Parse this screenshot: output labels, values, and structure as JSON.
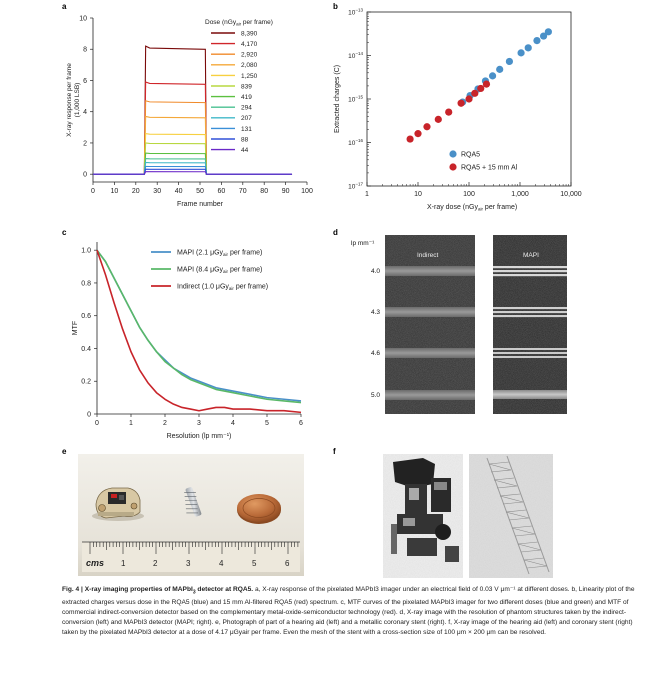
{
  "panel_labels": {
    "a": "a",
    "b": "b",
    "c": "c",
    "d": "d",
    "e": "e",
    "f": "f"
  },
  "chart_data": [
    {
      "panel": "a",
      "type": "line",
      "xlabel": "Frame number",
      "ylabel": [
        "X-ray response per frame",
        "(1,000 LSB)"
      ],
      "xlim": [
        0,
        100
      ],
      "ylim": [
        -0.5,
        10
      ],
      "xticks": [
        0,
        10,
        20,
        30,
        40,
        50,
        60,
        70,
        80,
        90,
        100
      ],
      "yticks": [
        0,
        2,
        4,
        6,
        8,
        10
      ],
      "legend_title": "Dose (nGy<sub>air</sub> per frame)",
      "legend_title_parts": [
        "Dose (nGy",
        "air",
        " per frame)"
      ],
      "legend_position": "right",
      "pulse": {
        "x_on": 24,
        "x_off": 53,
        "x_end": 93
      },
      "series": [
        {
          "name": "8,390",
          "value": 8.2,
          "color": "#7a0a0a"
        },
        {
          "name": "4,170",
          "value": 5.9,
          "color": "#d0262a"
        },
        {
          "name": "2,920",
          "value": 4.7,
          "color": "#f08a2a"
        },
        {
          "name": "2,080",
          "value": 3.7,
          "color": "#f4a83a"
        },
        {
          "name": "1,250",
          "value": 2.6,
          "color": "#f7d040"
        },
        {
          "name": "839",
          "value": 2.0,
          "color": "#b8d840"
        },
        {
          "name": "419",
          "value": 1.35,
          "color": "#5cc040"
        },
        {
          "name": "294",
          "value": 1.0,
          "color": "#48c090"
        },
        {
          "name": "207",
          "value": 0.75,
          "color": "#40b8c8"
        },
        {
          "name": "131",
          "value": 0.5,
          "color": "#3a8fd8"
        },
        {
          "name": "88",
          "value": 0.32,
          "color": "#3050d8"
        },
        {
          "name": "44",
          "value": 0.16,
          "color": "#6a28c8"
        }
      ]
    },
    {
      "panel": "b",
      "type": "scatter",
      "xlabel_parts": [
        "X-ray dose (nGy",
        "air",
        " per frame)"
      ],
      "ylabel": "Extracted charges (C)",
      "xscale": "log",
      "yscale": "log",
      "xlim": [
        1,
        10000
      ],
      "ylim": [
        1e-17,
        1e-13
      ],
      "xticks": [
        {
          "v": 1,
          "t": "1"
        },
        {
          "v": 10,
          "t": "10"
        },
        {
          "v": 100,
          "t": "100"
        },
        {
          "v": 1000,
          "t": "1,000"
        },
        {
          "v": 10000,
          "t": "10,000"
        }
      ],
      "yticks": [
        {
          "v": 1e-17,
          "b": "10",
          "e": "−17"
        },
        {
          "v": 1e-16,
          "b": "10",
          "e": "−16"
        },
        {
          "v": 1e-15,
          "b": "10",
          "e": "−15"
        },
        {
          "v": 1e-14,
          "b": "10",
          "e": "−14"
        },
        {
          "v": 1e-13,
          "b": "10",
          "e": "−13"
        }
      ],
      "legend_position": "bottom-right",
      "series": [
        {
          "name": "RQA5",
          "color": "#4a90c8",
          "points": [
            [
              75,
              8.5e-16
            ],
            [
              105,
              1.2e-15
            ],
            [
              150,
              1.7e-15
            ],
            [
              210,
              2.6e-15
            ],
            [
              290,
              3.4e-15
            ],
            [
              400,
              4.8e-15
            ],
            [
              620,
              7.3e-15
            ],
            [
              1050,
              1.15e-14
            ],
            [
              1450,
              1.5e-14
            ],
            [
              2150,
              2.2e-14
            ],
            [
              2900,
              2.8e-14
            ],
            [
              3600,
              3.5e-14
            ]
          ]
        },
        {
          "name": "RQA5 + 15 mm Al",
          "color": "#c8242a",
          "points": [
            [
              7,
              1.2e-16
            ],
            [
              10,
              1.6e-16
            ],
            [
              15,
              2.3e-16
            ],
            [
              25,
              3.4e-16
            ],
            [
              40,
              5e-16
            ],
            [
              70,
              8e-16
            ],
            [
              100,
              1e-15
            ],
            [
              130,
              1.35e-15
            ],
            [
              170,
              1.75e-15
            ],
            [
              220,
              2.2e-15
            ]
          ]
        }
      ]
    },
    {
      "panel": "c",
      "type": "line",
      "xlabel": "Resolution (lp mm⁻¹)",
      "ylabel": "MTF",
      "xlim": [
        0,
        6
      ],
      "ylim": [
        0,
        1.05
      ],
      "xticks": [
        0,
        1,
        2,
        3,
        4,
        5,
        6
      ],
      "yticks": [
        0,
        0.2,
        0.4,
        0.6,
        0.8,
        1.0
      ],
      "ytick_labels": [
        "0",
        "0.2",
        "0.4",
        "0.6",
        "0.8",
        "1.0"
      ],
      "legend_position": "top-right",
      "series": [
        {
          "name_parts": [
            "MAPI (2.1 μGy",
            "air",
            " per frame)"
          ],
          "color": "#4a90c8",
          "x": [
            0,
            0.25,
            0.5,
            0.75,
            1.0,
            1.25,
            1.5,
            1.75,
            2.0,
            2.25,
            2.5,
            2.75,
            3.0,
            3.25,
            3.5,
            3.75,
            4.0,
            4.5,
            5.0,
            5.5,
            6.0
          ],
          "y": [
            1.0,
            0.93,
            0.83,
            0.73,
            0.63,
            0.53,
            0.45,
            0.38,
            0.33,
            0.28,
            0.25,
            0.22,
            0.2,
            0.18,
            0.16,
            0.15,
            0.14,
            0.12,
            0.1,
            0.09,
            0.08
          ]
        },
        {
          "name_parts": [
            "MAPI (8.4 μGy",
            "air",
            " per frame)"
          ],
          "color": "#5ab868",
          "x": [
            0,
            0.25,
            0.5,
            0.75,
            1.0,
            1.25,
            1.5,
            1.75,
            2.0,
            2.25,
            2.5,
            2.75,
            3.0,
            3.25,
            3.5,
            3.75,
            4.0,
            4.5,
            5.0,
            5.5,
            6.0
          ],
          "y": [
            1.0,
            0.93,
            0.83,
            0.73,
            0.63,
            0.53,
            0.45,
            0.38,
            0.32,
            0.28,
            0.24,
            0.21,
            0.19,
            0.17,
            0.15,
            0.14,
            0.13,
            0.11,
            0.09,
            0.08,
            0.07
          ]
        },
        {
          "name_parts": [
            "Indirect (1.0 μGy",
            "air",
            " per frame)"
          ],
          "color": "#c8242a",
          "x": [
            0,
            0.25,
            0.5,
            0.75,
            1.0,
            1.25,
            1.5,
            1.75,
            2.0,
            2.25,
            2.5,
            2.75,
            3.0,
            3.25,
            3.5,
            3.75,
            4.0,
            4.5,
            5.0,
            5.5,
            6.0
          ],
          "y": [
            1.0,
            0.85,
            0.68,
            0.52,
            0.38,
            0.27,
            0.19,
            0.13,
            0.09,
            0.06,
            0.04,
            0.03,
            0.02,
            0.03,
            0.04,
            0.04,
            0.03,
            0.03,
            0.02,
            0.02,
            0.01
          ]
        }
      ]
    }
  ],
  "panel_d": {
    "unit_label": "lp mm⁻¹",
    "left_title": "Indirect",
    "right_title": "MAPI",
    "rows": [
      "4.0",
      "4.3",
      "4.6",
      "5.0"
    ]
  },
  "panel_e": {
    "ruler_unit": "cms",
    "ruler_numbers": [
      "1",
      "2",
      "3",
      "4",
      "5",
      "6"
    ]
  },
  "caption": {
    "lead": "Fig. 4 | X-ray imaging properties of MAPbI",
    "lead_sub": "3",
    "lead_tail": " detector at RQA5.",
    "body": "a, X-ray response of the pixelated MAPbI3 imager under an electrical field of 0.03 V μm⁻¹ at different doses. b, Linearity plot of the extracted charges versus dose in the RQA5 (blue) and 15 mm Al-filtered RQA5 (red) spectrum. c, MTF curves of the pixelated MAPbI3 imager for two different doses (blue and green) and MTF of commercial indirect-conversion detector based on the complementary metal-oxide-semiconductor technology (red). d, X-ray image with the resolution of phantom structures taken by the indirect-conversion (left) and MAPbI3 detector (MAPI; right). e, Photograph of part of a hearing aid (left) and a metallic coronary stent (right). f, X-ray image of the hearing aid (left) and coronary stent (right) taken by the pixelated MAPbI3 detector at a dose of 4.17 μGyair per frame. Even the mesh of the stent with a cross-section size of 100 μm × 200 μm can be resolved."
  },
  "colors": {
    "axis": "#222222",
    "text": "#1a1a1a",
    "background": "#ffffff"
  }
}
